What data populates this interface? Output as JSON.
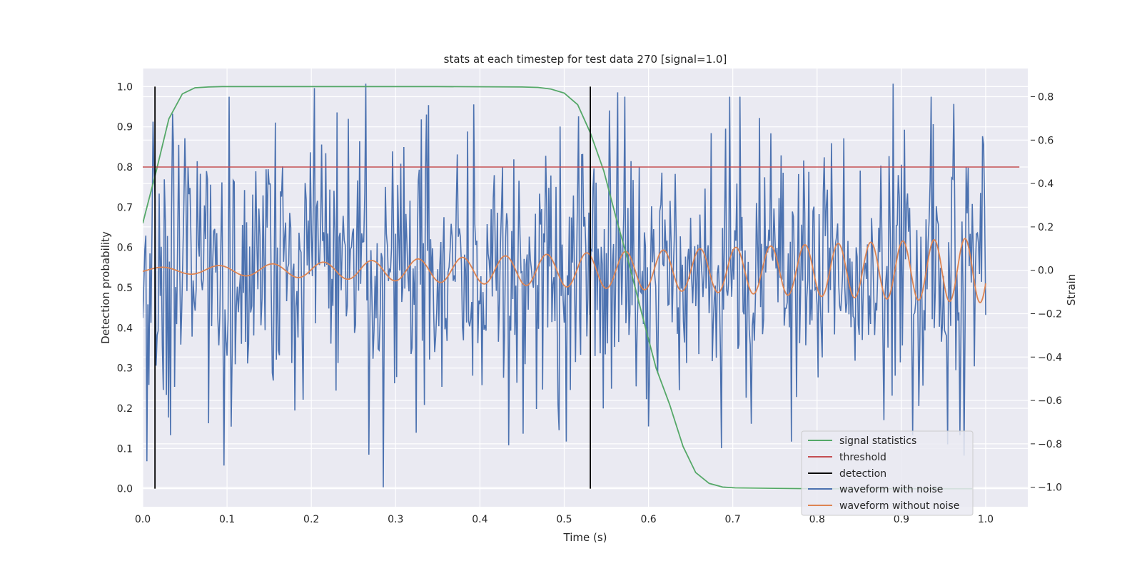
{
  "chart_data": {
    "type": "line",
    "title": "stats at each timestep for test data 270 [signal=1.0]",
    "xlabel": "Time (s)",
    "ylabel": "Detection probability",
    "y2label": "Strain",
    "xlim": [
      0.0,
      1.05
    ],
    "ylim": [
      -0.045,
      1.045
    ],
    "y2lim": [
      -1.09,
      0.93
    ],
    "xticks": [
      "0.0",
      "0.1",
      "0.2",
      "0.3",
      "0.4",
      "0.5",
      "0.6",
      "0.7",
      "0.8",
      "0.9",
      "1.0"
    ],
    "yticks": [
      "0.0",
      "0.1",
      "0.2",
      "0.3",
      "0.4",
      "0.5",
      "0.6",
      "0.7",
      "0.8",
      "0.9",
      "1.0"
    ],
    "y2ticks": [
      "−1.0",
      "−0.8",
      "−0.6",
      "−0.4",
      "−0.2",
      "0.0",
      "0.2",
      "0.4",
      "0.6",
      "0.8"
    ],
    "grid": true,
    "legend_position": "lower-right",
    "colors": {
      "signal": "#55a868",
      "threshold": "#c44e52",
      "detection": "#000000",
      "noisy": "#4c72b0",
      "clean": "#dd8452",
      "plot_bg": "#eaeaf2",
      "grid": "#ffffff"
    },
    "series": [
      {
        "name": "signal statistics",
        "axis": "left",
        "x": [
          0.0,
          0.016,
          0.031,
          0.047,
          0.062,
          0.078,
          0.094,
          0.109,
          0.125,
          0.14,
          0.25,
          0.35,
          0.45,
          0.469,
          0.484,
          0.5,
          0.516,
          0.531,
          0.547,
          0.562,
          0.578,
          0.594,
          0.609,
          0.625,
          0.641,
          0.656,
          0.672,
          0.688,
          0.703,
          0.75,
          0.8,
          0.85,
          0.9,
          0.95,
          0.984
        ],
        "y": [
          0.66,
          0.79,
          0.92,
          0.982,
          0.997,
          0.999,
          1.0,
          1.0,
          1.0,
          1.0,
          1.0,
          1.0,
          0.999,
          0.998,
          0.994,
          0.984,
          0.955,
          0.885,
          0.79,
          0.67,
          0.55,
          0.42,
          0.3,
          0.21,
          0.105,
          0.04,
          0.013,
          0.004,
          0.002,
          0.001,
          0.0,
          0.0,
          0.0,
          0.0,
          0.0
        ]
      },
      {
        "name": "threshold",
        "axis": "left",
        "x": [
          0.0,
          1.04
        ],
        "y": [
          0.8,
          0.8
        ]
      },
      {
        "name": "detection",
        "axis": "left",
        "vlines": [
          0.0145,
          0.531
        ],
        "ymin": 0.0,
        "ymax": 1.0
      },
      {
        "name": "waveform with noise",
        "axis": "right",
        "x_start": 0.0,
        "x_end": 1.0,
        "samples": 820,
        "seed": 270,
        "noise_std": 0.3,
        "extremes": [
          [
            0.0045,
            -0.88
          ],
          [
            0.096,
            -0.9
          ],
          [
            0.204,
            0.84
          ],
          [
            0.265,
            0.86
          ],
          [
            0.268,
            -0.85
          ],
          [
            0.285,
            -1.0
          ],
          [
            0.563,
            0.82
          ],
          [
            0.6,
            -0.72
          ],
          [
            0.687,
            -0.82
          ],
          [
            0.77,
            -0.79
          ],
          [
            0.89,
            0.86
          ],
          [
            0.913,
            -0.76
          ],
          [
            0.97,
            -0.76
          ],
          [
            0.998,
            0.58
          ]
        ]
      },
      {
        "name": "waveform without noise",
        "axis": "right",
        "x_start": 0.0,
        "x_end": 1.0,
        "amp_start": 0.012,
        "amp_end": 0.15,
        "freq_start": 14.0,
        "freq_end": 28.0,
        "phase": 4.3
      }
    ]
  }
}
